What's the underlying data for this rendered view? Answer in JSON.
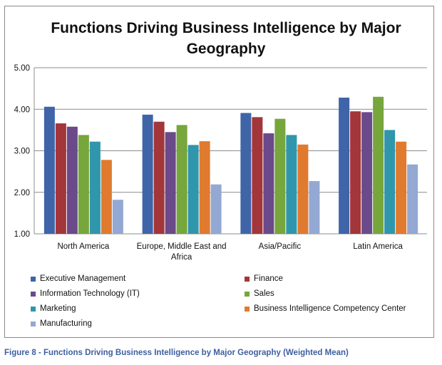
{
  "caption": "Figure 8 - Functions Driving Business Intelligence by Major Geography (Weighted Mean)",
  "chart_data": {
    "type": "bar",
    "title": "Functions Driving Business Intelligence by Major Geography",
    "categories": [
      "North America",
      "Europe, Middle East and Africa",
      "Asia/Pacific",
      "Latin America"
    ],
    "ylim": [
      1.0,
      5.0
    ],
    "yticks": [
      "1.00",
      "2.00",
      "3.00",
      "4.00",
      "5.00"
    ],
    "grid": true,
    "legend_position": "bottom",
    "series": [
      {
        "name": "Executive Management",
        "color": "#3f64a8",
        "values": [
          4.06,
          3.87,
          3.91,
          4.28
        ]
      },
      {
        "name": "Finance",
        "color": "#a3363b",
        "values": [
          3.66,
          3.7,
          3.81,
          3.95
        ]
      },
      {
        "name": "Information Technology (IT)",
        "color": "#6a4a8a",
        "values": [
          3.58,
          3.45,
          3.42,
          3.93
        ]
      },
      {
        "name": "Sales",
        "color": "#76a63c",
        "values": [
          3.38,
          3.62,
          3.77,
          4.3
        ]
      },
      {
        "name": "Marketing",
        "color": "#2f96ab",
        "values": [
          3.22,
          3.14,
          3.38,
          3.5
        ]
      },
      {
        "name": "Business Intelligence Competency Center",
        "color": "#e07a2e",
        "values": [
          2.78,
          3.23,
          3.15,
          3.22
        ]
      },
      {
        "name": "Manufacturing",
        "color": "#93a8d3",
        "values": [
          1.82,
          2.19,
          2.27,
          2.67
        ]
      }
    ]
  }
}
